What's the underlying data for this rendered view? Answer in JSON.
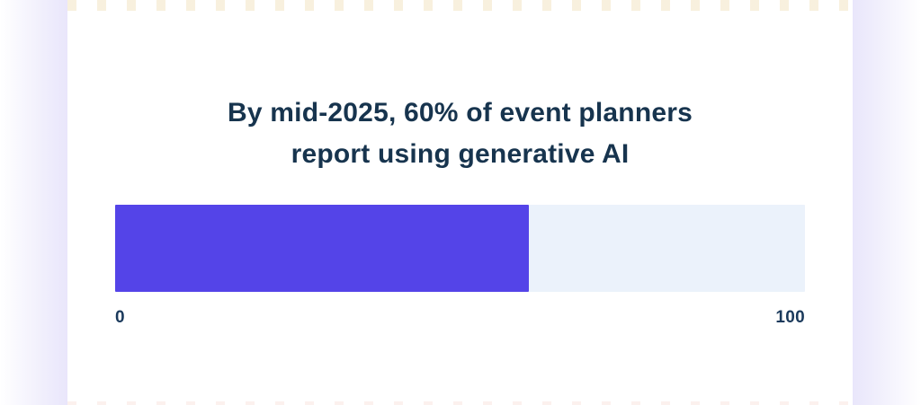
{
  "card": {
    "title_lines": {
      "line1": "By mid-2025, 60% of event planners",
      "line2": "report using generative AI"
    }
  },
  "chart_data": {
    "type": "bar",
    "orientation": "horizontal",
    "title": "By mid-2025, 60% of event planners report using generative AI",
    "series": [
      {
        "name": "Event planners using generative AI",
        "values": [
          60
        ]
      }
    ],
    "value": 60,
    "fill_percent": 60,
    "xlim": [
      0,
      100
    ],
    "tick_labels": {
      "min": "0",
      "max": "100"
    },
    "legend": "none",
    "grid": false,
    "colors": {
      "fill": "#5444E8",
      "track": "#EBF2FB",
      "title_text": "#17344E",
      "tick_text": "#1B3A5C",
      "gutter": "#E9E6FB",
      "card_background": "#FFFFFF"
    }
  }
}
